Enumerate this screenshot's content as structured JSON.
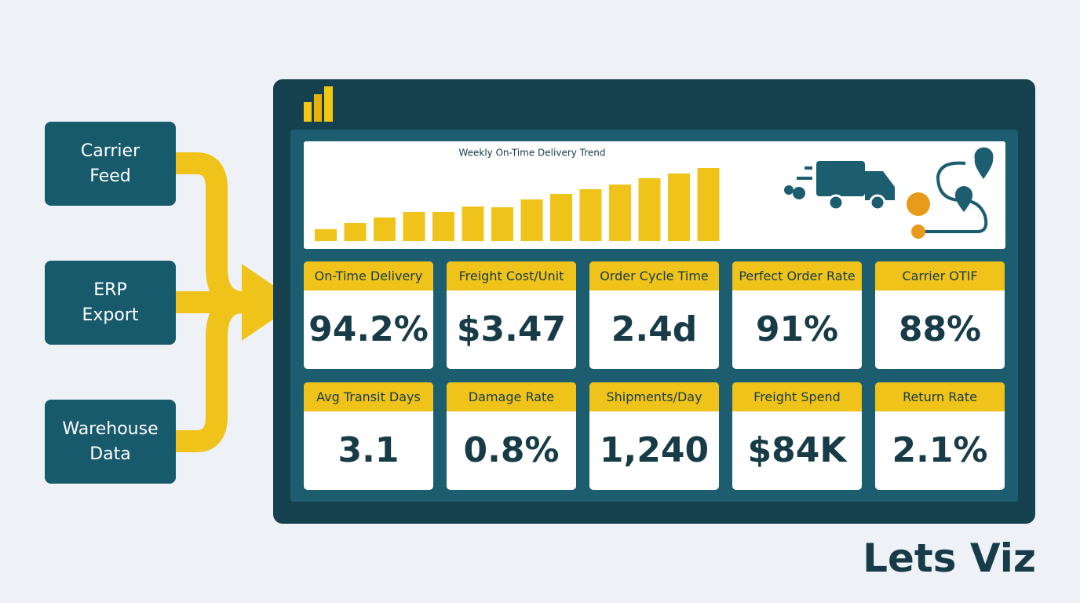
{
  "sources": [
    "Carrier Feed",
    "ERP Export",
    "Warehouse Data"
  ],
  "chart_data": {
    "type": "bar",
    "title": "Weekly On-Time Delivery Trend",
    "values": [
      15,
      23,
      30,
      37,
      37,
      44,
      43,
      53,
      60,
      66,
      72,
      80,
      86,
      93
    ],
    "color": "#efc319"
  },
  "kpis": [
    {
      "label": "On-Time Delivery",
      "value": "94.2%"
    },
    {
      "label": "Freight Cost/Unit",
      "value": "$3.47"
    },
    {
      "label": "Order Cycle Time",
      "value": "2.4d"
    },
    {
      "label": "Perfect Order Rate",
      "value": "91%"
    },
    {
      "label": "Carrier OTIF",
      "value": "88%"
    },
    {
      "label": "Avg Transit Days",
      "value": "3.1"
    },
    {
      "label": "Damage Rate",
      "value": "0.8%"
    },
    {
      "label": "Shipments/Day",
      "value": "1,240"
    },
    {
      "label": "Freight Spend",
      "value": "$84K"
    },
    {
      "label": "Return Rate",
      "value": "2.1%"
    }
  ],
  "brand": "Lets Viz"
}
